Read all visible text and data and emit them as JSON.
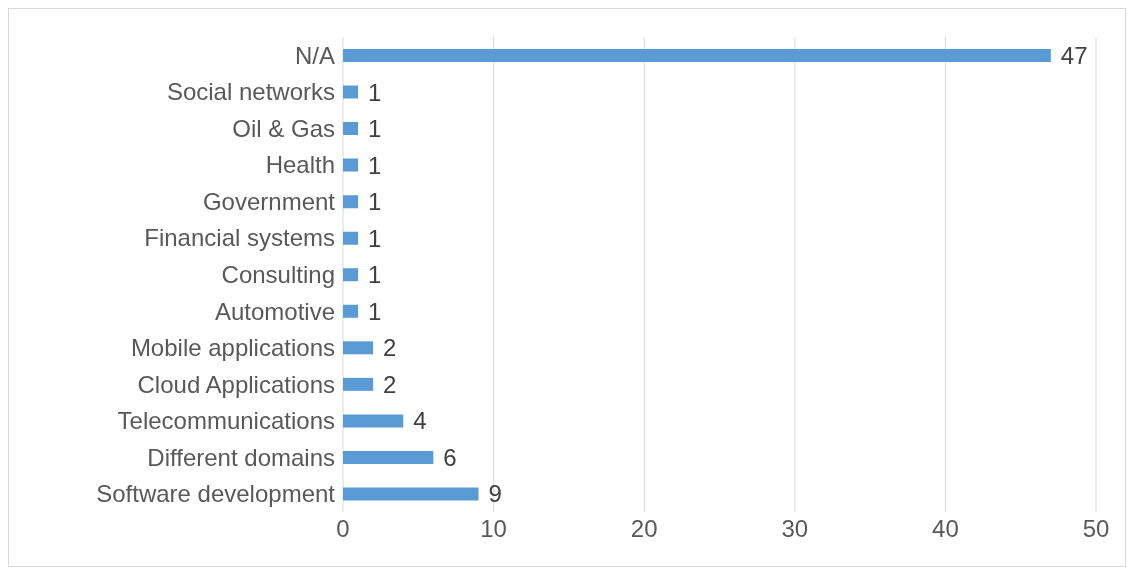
{
  "chart_data": {
    "type": "bar",
    "orientation": "horizontal",
    "categories": [
      "N/A",
      "Social networks",
      "Oil & Gas",
      "Health",
      "Government",
      "Financial systems",
      "Consulting",
      "Automotive",
      "Mobile applications",
      "Cloud Applications",
      "Telecommunications",
      "Different domains",
      "Software development"
    ],
    "values": [
      47,
      1,
      1,
      1,
      1,
      1,
      1,
      1,
      2,
      2,
      4,
      6,
      9
    ],
    "color": "#5b9bd5",
    "xlim": [
      0,
      50
    ],
    "xticks": [
      0,
      10,
      20,
      30,
      40,
      50
    ],
    "grid": "x",
    "data_labels": true
  }
}
